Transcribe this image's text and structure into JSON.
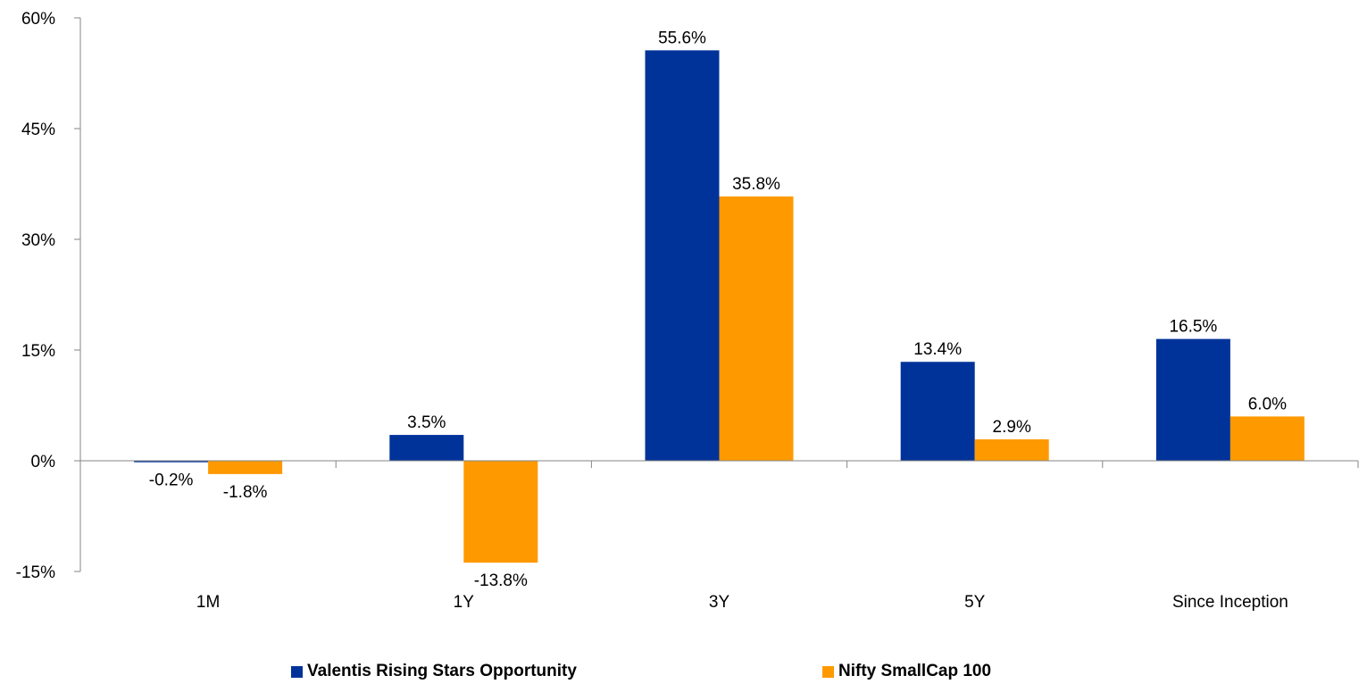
{
  "chart_data": {
    "type": "bar",
    "categories": [
      "1M",
      "1Y",
      "3Y",
      "5Y",
      "Since Inception"
    ],
    "series": [
      {
        "name": "Valentis Rising Stars Opportunity",
        "color": "#003399",
        "values": [
          -0.2,
          3.5,
          55.6,
          13.4,
          16.5
        ],
        "labels": [
          "-0.2%",
          "3.5%",
          "55.6%",
          "13.4%",
          "16.5%"
        ]
      },
      {
        "name": "Nifty SmallCap 100",
        "color": "#FF9900",
        "values": [
          -1.8,
          -13.8,
          35.8,
          2.9,
          6.0
        ],
        "labels": [
          "-1.8%",
          "-13.8%",
          "35.8%",
          "2.9%",
          "6.0%"
        ]
      }
    ],
    "yticks": [
      -15,
      0,
      15,
      30,
      45,
      60
    ],
    "ytick_labels": [
      "-15%",
      "0%",
      "15%",
      "30%",
      "45%",
      "60%"
    ],
    "ylim": [
      -15,
      60
    ],
    "grid": false,
    "legend_position": "bottom"
  }
}
